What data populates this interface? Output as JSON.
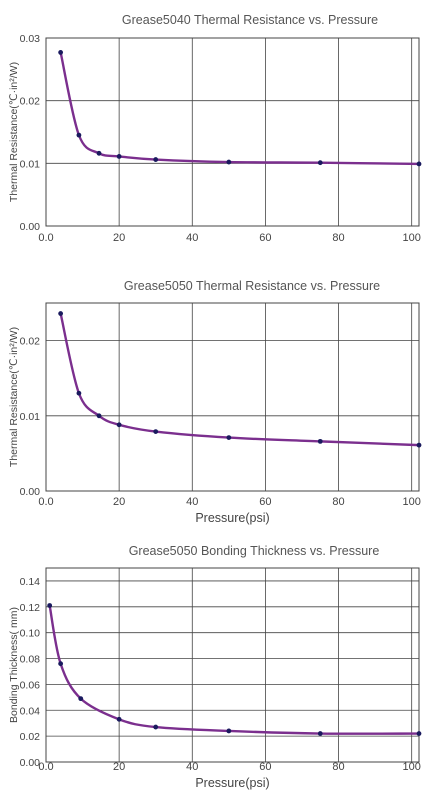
{
  "colors": {
    "line": "#7b2f8e",
    "marker": "#1a1a5e",
    "grid": "#444444",
    "axis_text": "#444444"
  },
  "chart_data": [
    {
      "type": "line",
      "title": "Grease5040 Thermal Resistance vs. Pressure",
      "xlabel": "",
      "ylabel": "Thermal Resistance(℃·in²/W)",
      "xlim": [
        0,
        102
      ],
      "ylim": [
        0,
        0.03
      ],
      "xticks": [
        0,
        20,
        40,
        60,
        80,
        100
      ],
      "xtick_labels": [
        "0.0",
        "20",
        "40",
        "60",
        "80",
        "100"
      ],
      "yticks": [
        0,
        0.01,
        0.02,
        0.03
      ],
      "ytick_labels": [
        "0.00",
        "0.01",
        "0.02",
        "0.03"
      ],
      "grid": true,
      "series": [
        {
          "x": [
            4,
            9,
            14.5,
            20,
            30,
            50,
            75,
            102
          ],
          "y": [
            0.0277,
            0.0145,
            0.0116,
            0.0111,
            0.0106,
            0.0102,
            0.0101,
            0.0099
          ]
        }
      ]
    },
    {
      "type": "line",
      "title": "Grease5050 Thermal Resistance vs. Pressure",
      "xlabel": "Pressure(psi)",
      "ylabel": "Thermal Resistance(℃·in²/W)",
      "xlim": [
        0,
        102
      ],
      "ylim": [
        0,
        0.025
      ],
      "xticks": [
        0,
        20,
        40,
        60,
        80,
        100
      ],
      "xtick_labels": [
        "0.0",
        "20",
        "40",
        "60",
        "80",
        "100"
      ],
      "yticks": [
        0,
        0.01,
        0.02
      ],
      "ytick_labels": [
        "0.00",
        "0.01",
        "0.02"
      ],
      "grid": true,
      "series": [
        {
          "x": [
            4,
            9,
            14.5,
            20,
            30,
            50,
            75,
            102
          ],
          "y": [
            0.0236,
            0.013,
            0.01,
            0.0088,
            0.0079,
            0.0071,
            0.0066,
            0.0061
          ]
        }
      ]
    },
    {
      "type": "line",
      "title": "Grease5050 Bonding Thickness vs. Pressure",
      "xlabel": "Pressure(psi)",
      "ylabel": "Bonding Thickness( mm)",
      "xlim": [
        0,
        102
      ],
      "ylim": [
        0,
        0.15
      ],
      "xticks": [
        0,
        20,
        40,
        60,
        80,
        100
      ],
      "xtick_labels": [
        "0.0",
        "20",
        "40",
        "60",
        "80",
        "100"
      ],
      "yticks": [
        0,
        0.02,
        0.04,
        0.06,
        0.08,
        0.1,
        0.12,
        0.14
      ],
      "ytick_labels": [
        "0.00",
        "0.02",
        "0.04",
        "0.06",
        "0.08",
        "0.10",
        "0.12",
        "0.14"
      ],
      "grid": true,
      "series": [
        {
          "x": [
            1,
            4,
            9.5,
            20,
            30,
            50,
            75,
            102
          ],
          "y": [
            0.121,
            0.076,
            0.049,
            0.033,
            0.027,
            0.024,
            0.022,
            0.022
          ]
        }
      ]
    }
  ]
}
